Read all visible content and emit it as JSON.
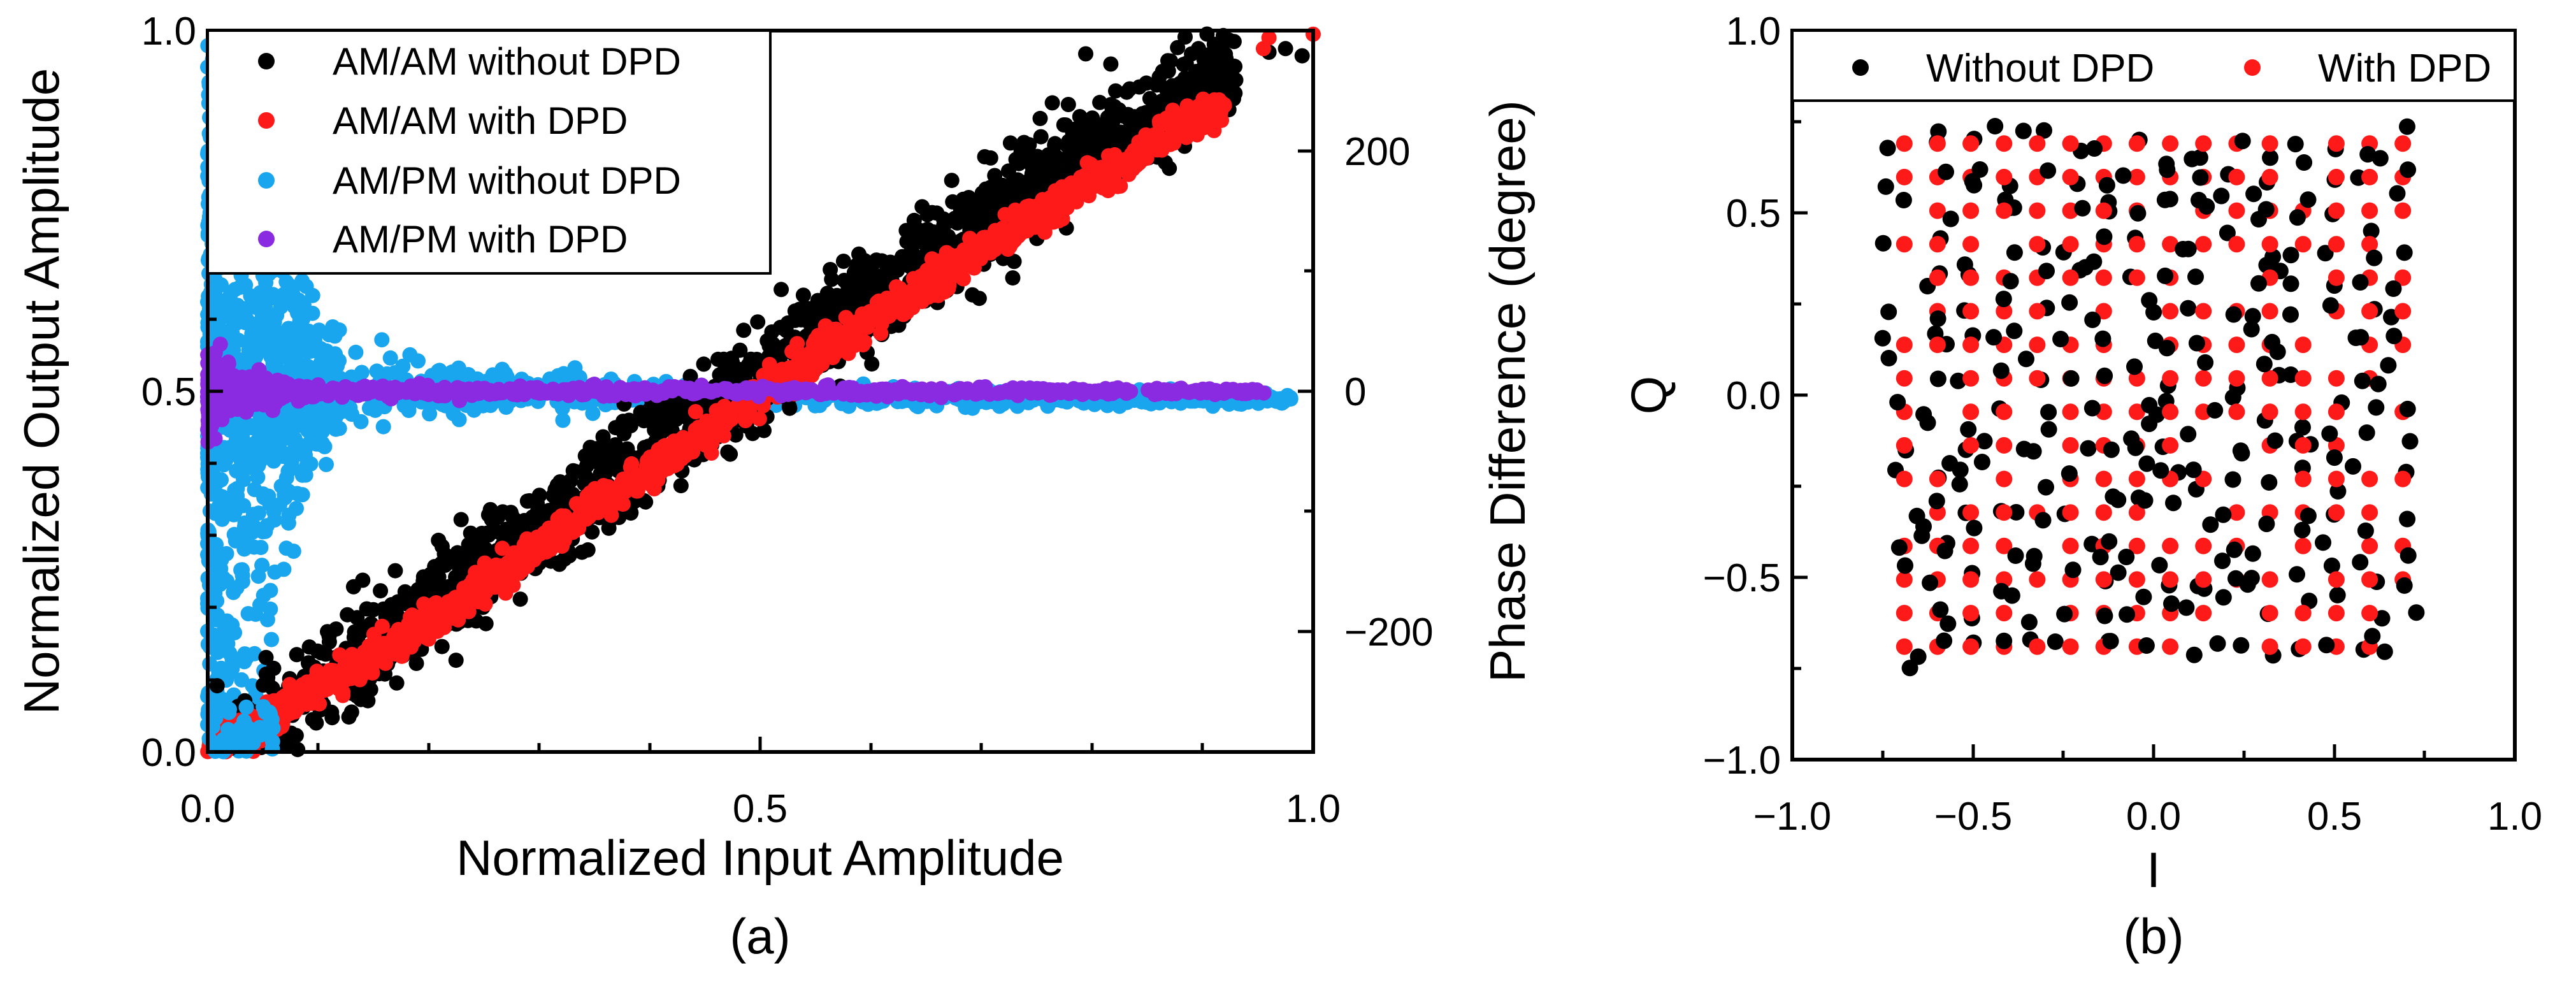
{
  "colors": {
    "without_dpd_black": "#000000",
    "with_dpd_red": "#ff1a1a",
    "ampm_without_cyan": "#1aa6ee",
    "ampm_with_purple": "#8a2be2"
  },
  "chart_data": [
    {
      "type": "scatter",
      "panel_label": "(a)",
      "xlabel": "Normalized Input Amplitude",
      "ylabel": "Normalized Output Amplitude",
      "y2label": "Phase Difference (degree)",
      "xlim": [
        0.0,
        1.0
      ],
      "ylim": [
        0.0,
        1.0
      ],
      "y2lim": [
        -300,
        300
      ],
      "xticks": [
        "0.0",
        "0.5",
        "1.0"
      ],
      "yticks": [
        "0.0",
        "0.5",
        "1.0"
      ],
      "y2ticks": [
        "200",
        "0",
        "−200"
      ],
      "legend_position": "top-left",
      "grid": false,
      "series": [
        {
          "name": "AM/AM without DPD",
          "axis": "left",
          "color": "#000000",
          "trend": {
            "x": [
              0.0,
              0.05,
              0.2,
              0.4,
              0.6,
              0.8,
              0.92,
              0.97
            ],
            "y": [
              0.0,
              0.04,
              0.2,
              0.42,
              0.63,
              0.84,
              0.94,
              0.97
            ]
          },
          "spread": 0.035
        },
        {
          "name": "AM/AM with DPD",
          "axis": "left",
          "color": "#ff1a1a",
          "trend": {
            "x": [
              0.0,
              0.2,
              0.4,
              0.6,
              0.8,
              0.92,
              1.0
            ],
            "y": [
              0.0,
              0.18,
              0.39,
              0.6,
              0.79,
              0.9,
              0.99
            ]
          },
          "spread": 0.012
        },
        {
          "name": "AM/PM without DPD",
          "axis": "right",
          "color": "#1aa6ee",
          "trend": {
            "x": [
              0.0,
              0.05,
              0.1,
              0.3,
              0.6,
              0.9,
              1.0
            ],
            "y": [
              0,
              0,
              0,
              -2,
              -4,
              -6,
              -7
            ]
          },
          "spread_profile": {
            "x": [
              0.0,
              0.03,
              0.06,
              0.1,
              0.2,
              0.4,
              1.0
            ],
            "y": [
              300,
              300,
              130,
              45,
              20,
              8,
              4
            ]
          }
        },
        {
          "name": "AM/PM with DPD",
          "axis": "right",
          "color": "#8a2be2",
          "trend": {
            "x": [
              0.0,
              1.0
            ],
            "y": [
              0,
              0
            ]
          },
          "spread_profile": {
            "x": [
              0.0,
              0.03,
              0.1,
              1.0
            ],
            "y": [
              35,
              15,
              5,
              2
            ]
          }
        }
      ]
    },
    {
      "type": "scatter",
      "panel_label": "(b)",
      "xlabel": "I",
      "ylabel": "Q",
      "xlim": [
        -1.0,
        1.0
      ],
      "ylim": [
        -1.0,
        1.0
      ],
      "xticks": [
        "−1.0",
        "−0.5",
        "0.0",
        "0.5",
        "1.0"
      ],
      "yticks": [
        "−1.0",
        "−0.5",
        "0.0",
        "0.5",
        "1.0"
      ],
      "legend_position": "top",
      "grid": false,
      "constellation": {
        "levels": 16,
        "range": [
          -0.69,
          0.69
        ]
      },
      "series": [
        {
          "name": "Without DPD",
          "color": "#000000",
          "points_approx": 1000,
          "extent": [
            -0.75,
            0.74
          ]
        },
        {
          "name": "With DPD",
          "color": "#ff1a1a",
          "points_approx": 1000,
          "extent": [
            -0.69,
            0.69
          ]
        }
      ]
    }
  ]
}
